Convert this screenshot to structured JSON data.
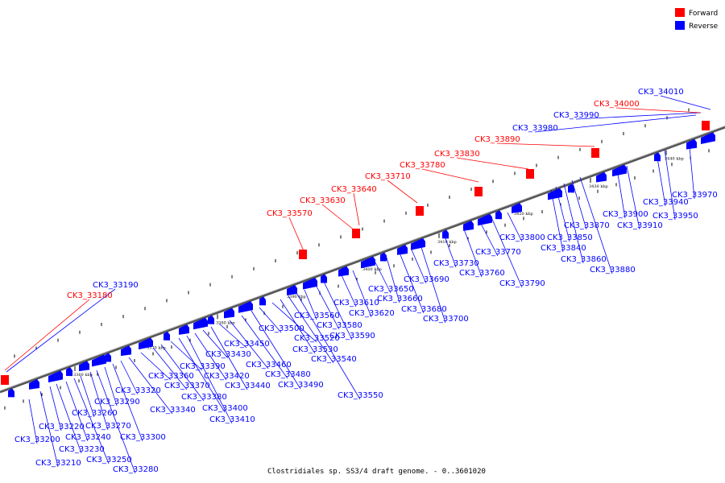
{
  "caption": "Clostridiales sp. SS3/4 draft genome. - 0..3601020",
  "legend": [
    {
      "label": "Forward",
      "color": "#ff0000"
    },
    {
      "label": "Reverse",
      "color": "#0000ff"
    }
  ],
  "colors": {
    "forward": "#ff0000",
    "reverse": "#0000ff",
    "axis": "#555555"
  },
  "scale_labels": [
    "3360 kbp",
    "3370 kbp",
    "3380 kbp",
    "3390 kbp",
    "3400 kbp",
    "3410 kbp",
    "3420 kbp",
    "3430 kbp",
    "3440 kbp"
  ],
  "reverse_labels": [
    "CK3_33190",
    "CK3_33200",
    "CK3_33210",
    "CK3_33220",
    "CK3_33230",
    "CK3_33240",
    "CK3_33250",
    "CK3_33260",
    "CK3_33270",
    "CK3_33280",
    "CK3_33290",
    "CK3_33300",
    "CK3_33320",
    "CK3_33340",
    "CK3_33360",
    "CK3_33370",
    "CK3_33380",
    "CK3_33390",
    "CK3_33400",
    "CK3_33410",
    "CK3_33420",
    "CK3_33430",
    "CK3_33440",
    "CK3_33450",
    "CK3_33460",
    "CK3_33480",
    "CK3_33490",
    "CK3_33500",
    "CK3_33520",
    "CK3_33530",
    "CK3_33540",
    "CK3_33550",
    "CK3_33560",
    "CK3_33580",
    "CK3_33590",
    "CK3_33610",
    "CK3_33620",
    "CK3_33650",
    "CK3_33660",
    "CK3_33680",
    "CK3_33690",
    "CK3_33700",
    "CK3_33730",
    "CK3_33760",
    "CK3_33770",
    "CK3_33790",
    "CK3_33800",
    "CK3_33840",
    "CK3_33850",
    "CK3_33860",
    "CK3_33870",
    "CK3_33880",
    "CK3_33900",
    "CK3_33910",
    "CK3_33940",
    "CK3_33950",
    "CK3_33970",
    "CK3_33980",
    "CK3_33990",
    "CK3_34010"
  ],
  "forward_labels": [
    "CK3_33180",
    "CK3_33570",
    "CK3_33630",
    "CK3_33640",
    "CK3_33710",
    "CK3_33780",
    "CK3_33830",
    "CK3_33890",
    "CK3_34000"
  ]
}
